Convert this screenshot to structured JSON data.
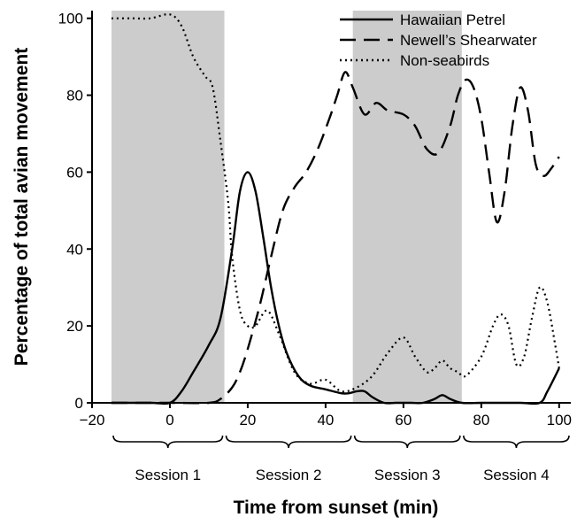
{
  "chart_data": {
    "type": "line",
    "title": "",
    "xlabel": "Time from sunset (min)",
    "ylabel": "Percentage of total avian movement",
    "xlim": [
      -20,
      103
    ],
    "ylim": [
      0,
      102
    ],
    "xticks": [
      -20,
      0,
      20,
      40,
      60,
      80,
      100
    ],
    "xtick_labels": [
      "−20",
      "0",
      "20",
      "40",
      "60",
      "80",
      "100"
    ],
    "yticks": [
      0,
      20,
      40,
      60,
      80,
      100
    ],
    "ytick_labels": [
      "0",
      "20",
      "40",
      "60",
      "80",
      "100"
    ],
    "grid": false,
    "legend_position": "top-right",
    "shaded_intervals": [
      [
        -15,
        14
      ],
      [
        47,
        75
      ]
    ],
    "shade_color": "#cccccc",
    "sessions": [
      {
        "label": "Session 1",
        "range": [
          -15,
          14
        ]
      },
      {
        "label": "Session 2",
        "range": [
          14,
          47
        ]
      },
      {
        "label": "Session 3",
        "range": [
          47,
          75
        ]
      },
      {
        "label": "Session 4",
        "range": [
          75,
          103
        ]
      }
    ],
    "series": [
      {
        "name": "Hawaiian Petrel",
        "style": "solid",
        "color": "#000000",
        "x": [
          -15,
          -5,
          0,
          3,
          6,
          10,
          13,
          16,
          18,
          20,
          22,
          24,
          26,
          28,
          30,
          33,
          36,
          40,
          44,
          46,
          48,
          50,
          52,
          55,
          58,
          62,
          65,
          68,
          70,
          72,
          75,
          80,
          85,
          90,
          95,
          97,
          100
        ],
        "y": [
          0,
          0,
          0,
          3,
          8,
          15,
          22,
          40,
          55,
          60,
          55,
          43,
          30,
          20,
          13,
          7,
          4.5,
          3.5,
          2.5,
          2.5,
          3,
          3,
          1.5,
          0,
          0,
          0,
          0,
          1,
          2,
          1,
          0,
          0,
          0,
          0,
          0,
          3,
          9
        ]
      },
      {
        "name": "Newell’s Shearwater",
        "style": "dashed",
        "color": "#000000",
        "x": [
          -15,
          0,
          10,
          13,
          16,
          18,
          20,
          23,
          26,
          29,
          32,
          35,
          38,
          41,
          43,
          45,
          47,
          50,
          53,
          56,
          60,
          63,
          66,
          69,
          72,
          74,
          76,
          78,
          80,
          82,
          84,
          86,
          88,
          90,
          92,
          94,
          96,
          98,
          100
        ],
        "y": [
          0,
          0,
          0,
          1,
          4,
          8,
          14,
          25,
          38,
          50,
          56,
          60,
          66,
          74,
          80,
          86,
          82,
          75,
          78,
          76,
          75,
          72,
          66,
          65,
          72,
          80,
          84,
          82,
          74,
          60,
          47,
          55,
          72,
          82,
          76,
          62,
          59,
          61,
          64
        ]
      },
      {
        "name": "Non-seabirds",
        "style": "dotted",
        "color": "#000000",
        "x": [
          -15,
          -10,
          -5,
          0,
          3,
          6,
          9,
          11,
          13,
          15,
          16,
          18,
          20,
          22,
          25,
          28,
          32,
          36,
          40,
          44,
          48,
          52,
          56,
          60,
          63,
          66,
          68,
          70,
          72,
          74,
          76,
          80,
          83,
          85,
          87,
          89,
          91,
          93,
          95,
          97,
          99,
          100
        ],
        "y": [
          100,
          100,
          100,
          101,
          98,
          90,
          85,
          82,
          68,
          52,
          38,
          24,
          20,
          20,
          24,
          18,
          8,
          5,
          6,
          3,
          4,
          7,
          13,
          17,
          12,
          8,
          9,
          11,
          9,
          8,
          7,
          12,
          20,
          23,
          20,
          10,
          12,
          22,
          30,
          26,
          15,
          9
        ]
      }
    ]
  }
}
